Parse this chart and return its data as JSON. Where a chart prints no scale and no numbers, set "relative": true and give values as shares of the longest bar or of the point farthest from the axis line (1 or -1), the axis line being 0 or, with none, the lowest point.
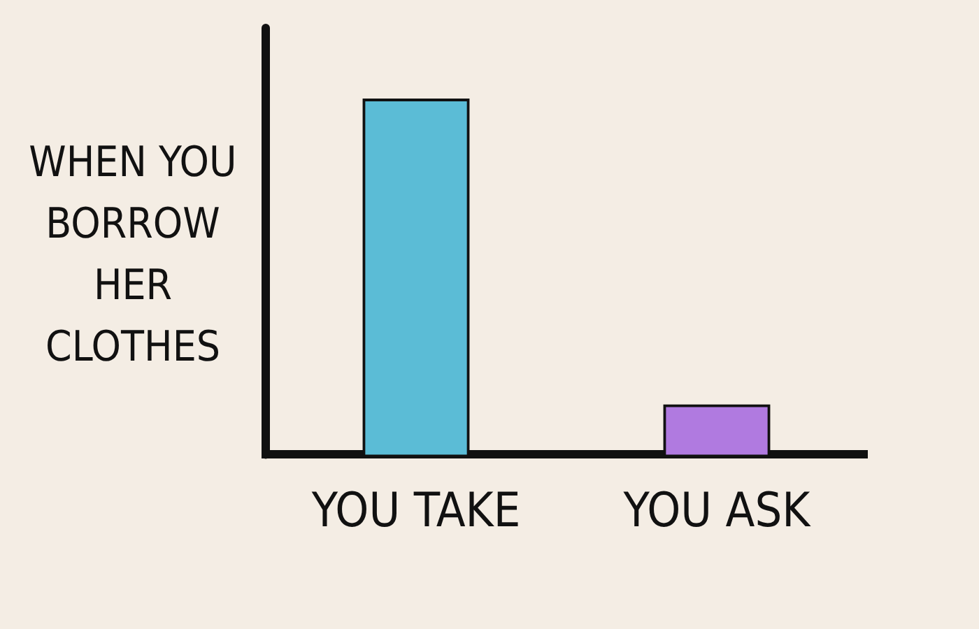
{
  "chart_data": {
    "type": "bar",
    "relative": true,
    "ylabel": "WHEN YOU BORROW HER CLOTHES",
    "categories": [
      "YOU TAKE",
      "YOU ASK"
    ],
    "values": [
      1,
      0.14
    ],
    "colors": [
      "#5bbcd6",
      "#b07ae0"
    ],
    "grid": false,
    "legend": false
  }
}
